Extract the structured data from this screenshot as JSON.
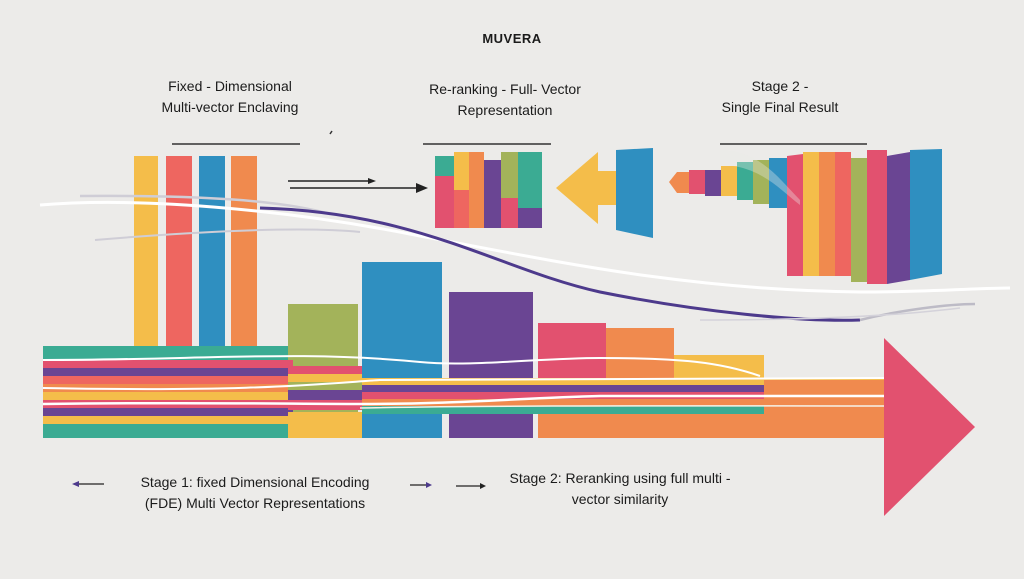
{
  "title": "MUVERA",
  "labels": {
    "top_left": "Fixed - Dimensional\nMulti-vector  Enclaving",
    "top_middle": "Re-ranking - Full- Vector\nRepresentation",
    "top_right": "Stage 2 -\nSingle Final  Result",
    "bottom_left": "Stage 1: fixed Dimensional Encoding\n(FDE) Multi Vector Representations",
    "bottom_right": "Stage 2: Reranking using full multi -\nvector similarity"
  },
  "colors": {
    "background": "#ecebe9",
    "yellow": "#f4bd4a",
    "coral": "#ee6660",
    "blue": "#2f8fc0",
    "orange": "#f08a4e",
    "pink": "#e2516f",
    "green": "#a3b35a",
    "purple": "#6a4593",
    "teal": "#3bab93",
    "navy_line": "#4d3a8c"
  }
}
